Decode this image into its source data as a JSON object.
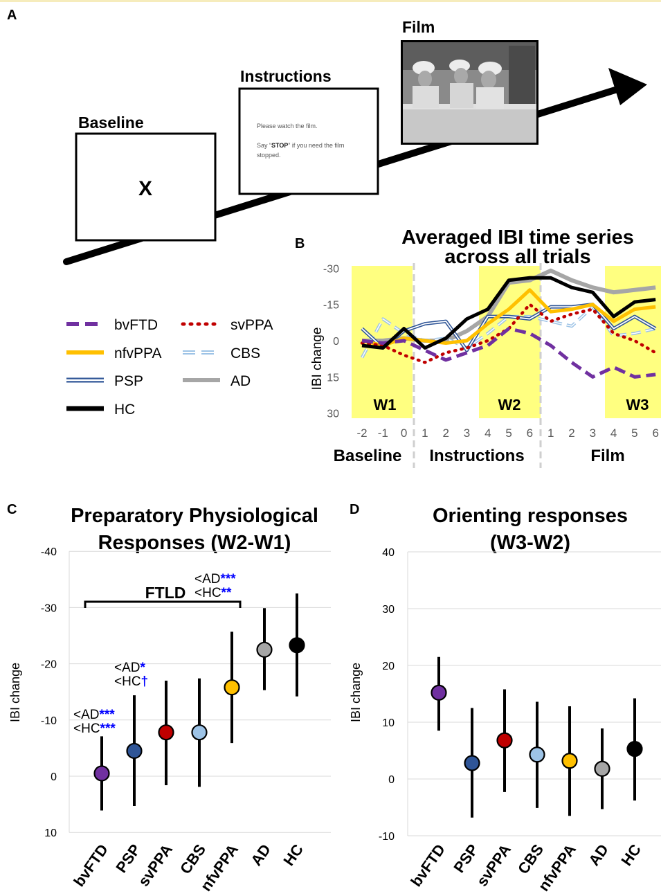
{
  "panels": {
    "a": "A",
    "b": "B",
    "c": "C",
    "d": "D"
  },
  "panel_a": {
    "baseline_label": "Baseline",
    "baseline_symbol": "X",
    "instructions_label": "Instructions",
    "instructions_line1": "Please watch the film.",
    "instructions_line2_pre": "Say “",
    "instructions_line2_bold": "STOP",
    "instructions_line2_post": "” if you need the film",
    "instructions_line3": "stopped.",
    "film_label": "Film"
  },
  "legend": {
    "bvftd": "bvFTD",
    "svppa": "svPPA",
    "nfvppa": "nfvPPA",
    "cbs": "CBS",
    "psp": "PSP",
    "ad": "AD",
    "hc": "HC"
  },
  "colors": {
    "bvftd": "#7030a0",
    "svppa": "#c00000",
    "nfvppa": "#ffc000",
    "cbs": "#9dc3e6",
    "psp": "#2f5597",
    "ad": "#a6a6a6",
    "hc": "#000000",
    "window": "#ffff80",
    "significance": "#0000ff"
  },
  "chart_data": [
    {
      "type": "line",
      "title_line1": "Averaged IBI time series",
      "title_line2": "across all trials",
      "xlabel": "",
      "ylabel": "IBI change",
      "y_inverted": true,
      "ylim": [
        30,
        -30
      ],
      "y_ticks": [
        "-30",
        "-15",
        "0",
        "15",
        "30"
      ],
      "x_ticks": [
        "-2",
        "-1",
        "0",
        "1",
        "2",
        "3",
        "4",
        "5",
        "6",
        "1",
        "2",
        "3",
        "4",
        "5",
        "6"
      ],
      "phases": [
        "Baseline",
        "Instructions",
        "Film"
      ],
      "windows": [
        "W1",
        "W2",
        "W3"
      ],
      "x": [
        1,
        2,
        3,
        4,
        5,
        6,
        7,
        8,
        9,
        10,
        11,
        12,
        13,
        14,
        15
      ],
      "series": [
        {
          "name": "bvFTD",
          "key": "bvftd",
          "values": [
            0,
            1,
            0,
            4,
            8,
            5,
            2,
            -5,
            -3,
            2,
            9,
            15,
            11,
            15,
            14
          ]
        },
        {
          "name": "svPPA",
          "key": "svppa",
          "values": [
            1,
            2,
            6,
            9,
            5,
            3,
            0,
            -5,
            -15,
            -8,
            -11,
            -13,
            -3,
            0,
            5
          ]
        },
        {
          "name": "nfvPPA",
          "key": "nfvppa",
          "values": [
            0,
            2,
            -1,
            0,
            1,
            0,
            -7,
            -13,
            -21,
            -12,
            -13,
            -15,
            -8,
            -13,
            -14
          ]
        },
        {
          "name": "CBS",
          "key": "cbs",
          "values": [
            7,
            -9,
            -3,
            0,
            -1,
            3,
            -3,
            -10,
            -10,
            -8,
            -6,
            -14,
            -2,
            -3,
            -5
          ]
        },
        {
          "name": "PSP",
          "key": "psp",
          "values": [
            -5,
            3,
            -4,
            -7,
            -8,
            4,
            -10,
            -10,
            -9,
            -14,
            -14,
            -15,
            -5,
            -10,
            -5
          ]
        },
        {
          "name": "AD",
          "key": "ad",
          "values": [
            0,
            0,
            -1,
            0,
            0,
            -4,
            -10,
            -24,
            -25,
            -29,
            -25,
            -22,
            -20,
            -21,
            -22
          ]
        },
        {
          "name": "HC",
          "key": "hc",
          "values": [
            2,
            3,
            -5,
            3,
            -1,
            -9,
            -13,
            -25,
            -26,
            -26,
            -22,
            -20,
            -10,
            -16,
            -17
          ]
        }
      ]
    },
    {
      "type": "scatter",
      "title_line1": "Preparatory Physiological",
      "title_line2": "Responses (W2-W1)",
      "xlabel": "",
      "ylabel": "IBI change",
      "y_inverted": true,
      "ylim": [
        10,
        -40
      ],
      "y_ticks": [
        "-40",
        "-30",
        "-20",
        "-10",
        "0",
        "10"
      ],
      "categories": [
        "bvFTD",
        "PSP",
        "svPPA",
        "CBS",
        "nfvPPA",
        "AD",
        "HC"
      ],
      "keys": [
        "bvftd",
        "psp",
        "svppa",
        "cbs",
        "nfvppa",
        "ad",
        "hc"
      ],
      "values": [
        -0.5,
        -4.5,
        -7.8,
        -7.8,
        -15.8,
        -22.5,
        -23.3
      ],
      "err_low": [
        6.1,
        5.3,
        1.6,
        1.9,
        -5.9,
        -15.3,
        -14.2
      ],
      "err_high": [
        -7.1,
        -14.4,
        -17,
        -17.4,
        -25.7,
        -29.9,
        -32.5
      ],
      "bracket_label": "FTLD",
      "annotations": [
        {
          "group": "bvFTD",
          "lines": [
            {
              "text": "<AD",
              "stars": "***"
            },
            {
              "text": "<HC",
              "stars": "***"
            }
          ]
        },
        {
          "group": "PSP",
          "lines": [
            {
              "text": "<AD",
              "stars": "*"
            },
            {
              "text": "<HC",
              "stars": "†"
            }
          ]
        },
        {
          "group": "FTLD",
          "lines": [
            {
              "text": "<AD",
              "stars": "***"
            },
            {
              "text": "<HC",
              "stars": "**"
            }
          ]
        }
      ]
    },
    {
      "type": "scatter",
      "title_line1": "Orienting responses",
      "title_line2": "(W3-W2)",
      "xlabel": "",
      "ylabel": "IBI change",
      "ylim": [
        -10,
        40
      ],
      "y_ticks": [
        "40",
        "30",
        "20",
        "10",
        "0",
        "-10"
      ],
      "categories": [
        "bvFTD",
        "PSP",
        "svPPA",
        "CBS",
        "nfvPPA",
        "AD",
        "HC"
      ],
      "keys": [
        "bvftd",
        "psp",
        "svppa",
        "cbs",
        "nfvppa",
        "ad",
        "hc"
      ],
      "values": [
        15.2,
        2.8,
        6.8,
        4.3,
        3.2,
        1.8,
        5.3
      ],
      "err_low": [
        8.5,
        -6.8,
        -2.3,
        -5.1,
        -6.5,
        -5.3,
        -3.8
      ],
      "err_high": [
        21.5,
        12.5,
        15.8,
        13.6,
        12.8,
        8.9,
        14.2
      ]
    }
  ]
}
